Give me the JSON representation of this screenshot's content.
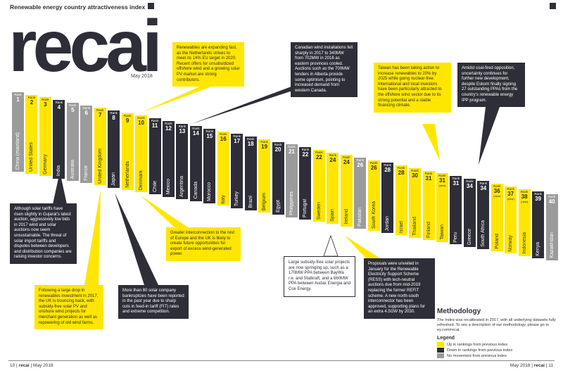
{
  "header": {
    "index_title": "Renewable energy country attractiveness index",
    "logo_text": "recai",
    "date": "May 2018"
  },
  "rankings": [
    {
      "rank": "1",
      "country": "China (mainland)",
      "color": "grey",
      "rank_label": "Rank"
    },
    {
      "rank": "2",
      "country": "United States",
      "color": "yellow",
      "rank_label": "Rank"
    },
    {
      "rank": "3",
      "country": "Germany",
      "color": "yellow",
      "rank_label": "Rank"
    },
    {
      "rank": "4",
      "country": "India",
      "color": "dark",
      "rank_label": "Rank"
    },
    {
      "rank": "5",
      "country": "Australia",
      "color": "grey",
      "rank_label": "Rank"
    },
    {
      "rank": "6",
      "country": "France",
      "color": "grey",
      "rank_label": "Rank"
    },
    {
      "rank": "7",
      "country": "United Kingdom",
      "color": "yellow",
      "rank_label": "Rank"
    },
    {
      "rank": "8",
      "country": "Japan",
      "color": "dark",
      "rank_label": "Rank"
    },
    {
      "rank": "9",
      "country": "Netherlands",
      "color": "yellow",
      "rank_label": "Rank"
    },
    {
      "rank": "10",
      "country": "Denmark",
      "color": "yellow",
      "rank_label": "Rank"
    },
    {
      "rank": "11",
      "country": "Chile",
      "color": "dark",
      "rank_label": "Rank"
    },
    {
      "rank": "12",
      "country": "Mexico",
      "color": "dark",
      "rank_label": "Rank"
    },
    {
      "rank": "13",
      "country": "Argentina",
      "color": "dark",
      "rank_label": "Rank"
    },
    {
      "rank": "14",
      "country": "Canada",
      "color": "dark",
      "rank_label": "Rank"
    },
    {
      "rank": "15",
      "country": "Morocco",
      "color": "dark",
      "rank_label": "Rank"
    },
    {
      "rank": "16",
      "country": "Italy",
      "color": "yellow",
      "rank_label": "Rank"
    },
    {
      "rank": "17",
      "country": "Turkey",
      "color": "dark",
      "rank_label": "Rank"
    },
    {
      "rank": "18",
      "country": "Brazil",
      "color": "dark",
      "rank_label": "Rank"
    },
    {
      "rank": "19",
      "country": "Belgium",
      "color": "yellow",
      "rank_label": "Rank"
    },
    {
      "rank": "20",
      "country": "Egypt",
      "color": "dark",
      "rank_label": "Rank"
    },
    {
      "rank": "21",
      "country": "Philippines",
      "color": "grey",
      "rank_label": "Rank"
    },
    {
      "rank": "22",
      "country": "Portugal",
      "color": "dark",
      "rank_label": "Rank"
    },
    {
      "rank": "22",
      "country": "Sweden",
      "color": "yellow",
      "rank_label": "Rank"
    },
    {
      "rank": "24",
      "country": "Spain",
      "color": "yellow",
      "rank_label": "Rank"
    },
    {
      "rank": "24",
      "country": "Ireland",
      "color": "yellow",
      "rank_label": "Rank"
    },
    {
      "rank": "26",
      "country": "Pakistan",
      "color": "grey",
      "rank_label": "Rank"
    },
    {
      "rank": "26",
      "country": "South Korea",
      "color": "yellow",
      "rank_label": "Rank"
    },
    {
      "rank": "28",
      "country": "Jordan",
      "color": "dark",
      "rank_label": "Rank"
    },
    {
      "rank": "28",
      "country": "Israel",
      "color": "yellow",
      "rank_label": "Rank"
    },
    {
      "rank": "30",
      "country": "Thailand",
      "color": "yellow",
      "rank_label": "Rank"
    },
    {
      "rank": "31",
      "country": "Finland",
      "color": "yellow",
      "rank_label": "Rank"
    },
    {
      "rank": "31",
      "country": "Taiwan",
      "color": "yellow",
      "rank_label": "Rank",
      "note": "(new)"
    },
    {
      "rank": "31",
      "country": "Peru",
      "color": "dark",
      "rank_label": "Rank"
    },
    {
      "rank": "34",
      "country": "Greece",
      "color": "dark",
      "rank_label": "Rank"
    },
    {
      "rank": "34",
      "country": "South Africa",
      "color": "dark",
      "rank_label": "Rank"
    },
    {
      "rank": "36",
      "country": "Poland",
      "color": "yellow",
      "rank_label": "Rank",
      "note": "(new)"
    },
    {
      "rank": "37",
      "country": "Norway",
      "color": "yellow",
      "rank_label": "Rank",
      "note": "(new)"
    },
    {
      "rank": "38",
      "country": "Indonesia",
      "color": "yellow",
      "rank_label": "Rank",
      "note": "(new)"
    },
    {
      "rank": "39",
      "country": "Kenya",
      "color": "dark",
      "rank_label": "Rank"
    },
    {
      "rank": "40",
      "country": "Kazakhstan",
      "color": "grey",
      "rank_label": "Rank"
    }
  ],
  "callouts": {
    "netherlands": "Renewables are expanding fast, as the Netherlands strives to meet its 14% EU target in 2020. Recent offers for unsubsidized offshore wind and a growing solar PV market are strong contributors.",
    "canada": "Canadian wind installations fell sharply in 2017 to 340MW from 702MW in 2016 as eastern provinces cooled. Auctions such as the 700MW tenders in Alberta provide some optimism, pointing to increased demand from western Canada.",
    "taiwan": "Taiwan has been taking action to increase renewables to 20% by 2025 while going nuclear-free. International and local investors have been particularly attracted to the offshore wind sector due to its strong potential and a stable financing climate.",
    "south_africa": "Amidst coal-fired opposition, uncertainty continues for further new development, despite Eskom finally signing 27 outstanding PPAs from the country's renewable energy IPP program.",
    "india": "Although solar tariffs have risen slightly in Gujarat's latest auction, aggressively low bids in 2017 wind and solar auctions now seem unsustainable. The threat of solar import tariffs and disputes between developers and distribution companies are raising investor concerns.",
    "uk": "Following a large drop in renewables investment in 2017, the UK is bouncing back, with subsidy-free solar PV and onshore wind projects for merchant generation as well as repowering of old wind farms.",
    "japan": "More than 80 solar company bankruptcies have been reported in the past year due to sharp cuts in feed-in tariff (FIT) rates and extreme competition.",
    "denmark": "Greater interconnection to the rest of Europe and the UK is likely to create future opportunities for export of excess wind-generated power.",
    "spain": "Large subsidy-free solar projects are now springing up, such as a 170MW PPA between BayWa r.e. and Statkraft, and a 660MW PPA between Audax Energia and Cox Energy.",
    "ireland": "Proposals were unveiled in January for the Renewable Electricity Support Scheme (RESS) with tech-neutral auctions due from mid-2019 replacing the former REFIT scheme. A new north-south interconnector has been approved, supporting plans for an extra 4.5GW by 2030."
  },
  "methodology": {
    "title": "Methodology",
    "text": "The Index was recalibrated in 2017, with all underlying datasets fully refreshed. To see a description of our methodology, please go to ey.com/recai."
  },
  "legend": {
    "title": "Legend",
    "items": [
      {
        "label": "Up in rankings from previous index",
        "color": "#ffe600"
      },
      {
        "label": "Down in rankings from previous index",
        "color": "#2e2e38"
      },
      {
        "label": "No movement from previous index",
        "color": "#9b9b9b"
      }
    ]
  },
  "footer": {
    "left_page": "10",
    "left_brand": "recai",
    "left_date": "May 2018",
    "right_date": "May 2018",
    "right_brand": "recai",
    "right_page": "11"
  },
  "colors": {
    "yellow": "#ffe600",
    "dark": "#2e2e38",
    "grey": "#9b9b9b"
  }
}
